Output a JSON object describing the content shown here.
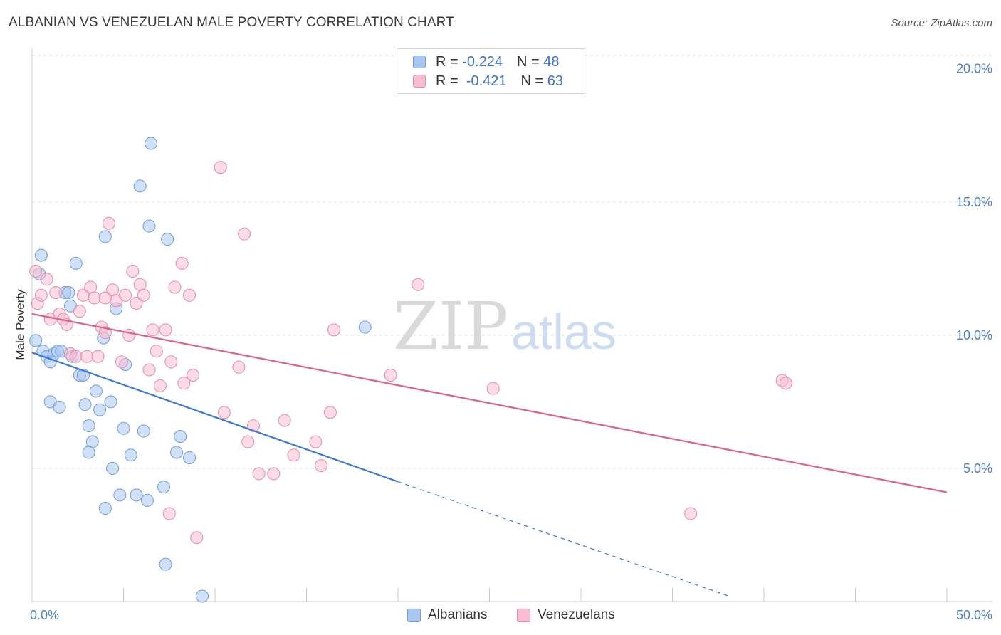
{
  "title": "ALBANIAN VS VENEZUELAN MALE POVERTY CORRELATION CHART",
  "source": "Source: ZipAtlas.com",
  "watermark": {
    "zip": "ZIP",
    "atlas": "atlas"
  },
  "legend": {
    "r_label": "R =",
    "n_label": "N =",
    "rows": [
      {
        "name": "Albanians",
        "r": "-0.224",
        "n": "48",
        "color": "#a9c6ee",
        "border": "#6e9bdc"
      },
      {
        "name": "Venezuelans",
        "r": "-0.421",
        "n": "63",
        "color": "#f7bdd0",
        "border": "#e88aa8"
      }
    ]
  },
  "chart_data": {
    "type": "scatter",
    "title": "ALBANIAN VS VENEZUELAN MALE POVERTY CORRELATION CHART",
    "xlabel": "",
    "ylabel": "Male Poverty",
    "xlim": [
      0,
      50
    ],
    "ylim": [
      0,
      20.5
    ],
    "x_tick_labels": [
      {
        "value": 0,
        "label": "0.0%"
      },
      {
        "value": 50,
        "label": "50.0%"
      }
    ],
    "y_tick_labels": [
      {
        "value": 5,
        "label": "5.0%"
      },
      {
        "value": 10,
        "label": "10.0%"
      },
      {
        "value": 15,
        "label": "15.0%"
      },
      {
        "value": 20,
        "label": "20.0%"
      }
    ],
    "x_minor_ticks": [
      5,
      10,
      15,
      20,
      25,
      30,
      35,
      40,
      45,
      50
    ],
    "y_gridlines": [
      5,
      10,
      15,
      20.5
    ],
    "grid": true,
    "legend_position": "top-center",
    "series": [
      {
        "name": "Albanians",
        "color": "#a9c6ee",
        "stroke": "#6e9bdc",
        "line_color": "#3b78d8",
        "trend": {
          "x0": 0,
          "y0": 9.35,
          "x1": 20,
          "y1": 4.5,
          "dash_to_x": 38.1,
          "dash_to_y": 0.2
        },
        "points": [
          [
            0.4,
            12.3
          ],
          [
            0.5,
            13.0
          ],
          [
            0.2,
            9.8
          ],
          [
            0.6,
            9.4
          ],
          [
            0.8,
            9.2
          ],
          [
            1.0,
            9.0
          ],
          [
            1.2,
            9.3
          ],
          [
            1.4,
            9.4
          ],
          [
            1.6,
            9.4
          ],
          [
            1.8,
            11.6
          ],
          [
            2.0,
            11.6
          ],
          [
            2.1,
            11.1
          ],
          [
            2.2,
            9.2
          ],
          [
            2.4,
            12.7
          ],
          [
            2.6,
            8.5
          ],
          [
            2.8,
            8.5
          ],
          [
            2.9,
            7.4
          ],
          [
            3.1,
            6.6
          ],
          [
            3.3,
            6.0
          ],
          [
            3.5,
            7.9
          ],
          [
            3.7,
            7.2
          ],
          [
            3.9,
            9.9
          ],
          [
            4.0,
            13.7
          ],
          [
            4.3,
            7.5
          ],
          [
            4.4,
            5.0
          ],
          [
            4.6,
            11.0
          ],
          [
            4.8,
            4.0
          ],
          [
            5.0,
            6.5
          ],
          [
            5.1,
            8.9
          ],
          [
            5.4,
            5.5
          ],
          [
            5.7,
            4.0
          ],
          [
            5.9,
            15.6
          ],
          [
            6.1,
            6.4
          ],
          [
            6.3,
            3.8
          ],
          [
            6.4,
            14.1
          ],
          [
            6.5,
            17.2
          ],
          [
            7.2,
            4.3
          ],
          [
            7.4,
            13.6
          ],
          [
            7.9,
            5.6
          ],
          [
            8.1,
            6.2
          ],
          [
            8.6,
            5.4
          ],
          [
            9.3,
            0.2
          ],
          [
            1.0,
            7.5
          ],
          [
            1.5,
            7.3
          ],
          [
            3.1,
            5.6
          ],
          [
            4.0,
            3.5
          ],
          [
            7.3,
            1.4
          ],
          [
            18.2,
            10.3
          ]
        ]
      },
      {
        "name": "Venezuelans",
        "color": "#f7bdd0",
        "stroke": "#e88aa8",
        "line_color": "#e0608a",
        "trend": {
          "x0": 0,
          "y0": 10.8,
          "x1": 50,
          "y1": 4.1
        },
        "points": [
          [
            0.2,
            12.4
          ],
          [
            0.3,
            11.2
          ],
          [
            0.5,
            11.5
          ],
          [
            0.8,
            12.1
          ],
          [
            1.0,
            10.6
          ],
          [
            1.3,
            11.6
          ],
          [
            1.5,
            10.8
          ],
          [
            1.7,
            10.6
          ],
          [
            1.9,
            10.4
          ],
          [
            2.1,
            9.3
          ],
          [
            2.4,
            9.2
          ],
          [
            2.6,
            10.9
          ],
          [
            2.8,
            11.5
          ],
          [
            3.0,
            9.2
          ],
          [
            3.2,
            11.8
          ],
          [
            3.4,
            11.4
          ],
          [
            3.6,
            9.2
          ],
          [
            3.8,
            10.3
          ],
          [
            4.0,
            10.1
          ],
          [
            4.2,
            14.2
          ],
          [
            4.4,
            11.7
          ],
          [
            4.6,
            11.3
          ],
          [
            4.9,
            9.0
          ],
          [
            5.1,
            11.5
          ],
          [
            5.3,
            10.0
          ],
          [
            5.5,
            12.4
          ],
          [
            5.7,
            11.2
          ],
          [
            5.9,
            11.9
          ],
          [
            6.1,
            11.5
          ],
          [
            6.4,
            8.7
          ],
          [
            6.6,
            10.2
          ],
          [
            6.8,
            9.4
          ],
          [
            7.0,
            8.1
          ],
          [
            7.3,
            10.2
          ],
          [
            7.6,
            9.0
          ],
          [
            7.8,
            11.8
          ],
          [
            8.2,
            12.7
          ],
          [
            8.3,
            8.2
          ],
          [
            8.6,
            11.5
          ],
          [
            8.8,
            8.5
          ],
          [
            10.3,
            16.3
          ],
          [
            10.5,
            7.1
          ],
          [
            11.3,
            8.8
          ],
          [
            11.6,
            13.8
          ],
          [
            11.8,
            6.0
          ],
          [
            12.1,
            6.6
          ],
          [
            12.4,
            4.8
          ],
          [
            13.2,
            4.8
          ],
          [
            13.8,
            6.8
          ],
          [
            14.3,
            5.5
          ],
          [
            15.5,
            6.0
          ],
          [
            15.8,
            5.1
          ],
          [
            16.3,
            7.1
          ],
          [
            16.5,
            10.2
          ],
          [
            19.6,
            8.5
          ],
          [
            21.1,
            11.9
          ],
          [
            25.2,
            8.0
          ],
          [
            36.0,
            3.3
          ],
          [
            41.0,
            8.3
          ],
          [
            41.2,
            8.2
          ],
          [
            7.5,
            3.3
          ],
          [
            9.0,
            2.4
          ],
          [
            4.0,
            11.4
          ]
        ]
      }
    ]
  }
}
